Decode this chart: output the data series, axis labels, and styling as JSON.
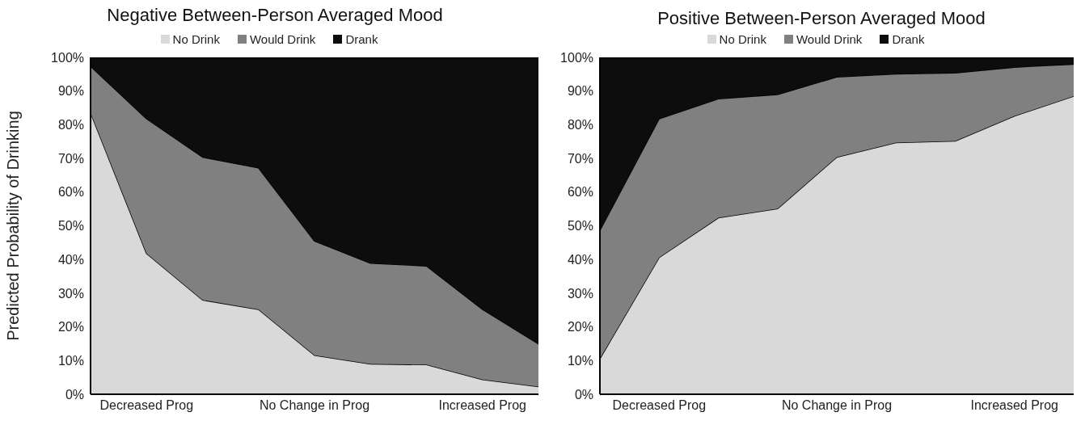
{
  "chart_data": [
    {
      "type": "area",
      "stacked": true,
      "title": "Negative Between-Person Averaged Mood",
      "ylabel": "Predicted Probability of Drinking",
      "legend": "top",
      "grid": false,
      "categories": [
        null,
        "Decreased Prog",
        null,
        null,
        "No Change in Prog",
        null,
        null,
        "Increased Prog",
        null
      ],
      "ylim": [
        0,
        100
      ],
      "yticks": [
        {
          "value": 0,
          "label": "0%"
        },
        {
          "value": 10,
          "label": "10%"
        },
        {
          "value": 20,
          "label": "20%"
        },
        {
          "value": 30,
          "label": "30%"
        },
        {
          "value": 40,
          "label": "40%"
        },
        {
          "value": 50,
          "label": "50%"
        },
        {
          "value": 60,
          "label": "60%"
        },
        {
          "value": 70,
          "label": "70%"
        },
        {
          "value": 80,
          "label": "80%"
        },
        {
          "value": 90,
          "label": "90%"
        },
        {
          "value": 100,
          "label": "100%"
        }
      ],
      "series": [
        {
          "name": "No Drink",
          "color": "#d9d9d9",
          "values": [
            83.6,
            41.8,
            28,
            25.2,
            11.6,
            9,
            8.8,
            4.4,
            2.3
          ]
        },
        {
          "name": "Would Drink",
          "color": "#808080",
          "values": [
            13.8,
            40,
            42.4,
            42,
            33.9,
            29.9,
            29.3,
            20.8,
            12.7
          ]
        },
        {
          "name": "Drank",
          "color": "#0d0d0d",
          "values": [
            2.6,
            18.2,
            29.6,
            32.8,
            54.5,
            61.1,
            61.9,
            74.8,
            85
          ]
        }
      ]
    },
    {
      "type": "area",
      "stacked": true,
      "title": "Positive Between-Person Averaged Mood",
      "legend": "top",
      "grid": false,
      "categories": [
        null,
        "Decreased Prog",
        null,
        null,
        "No Change in Prog",
        null,
        null,
        "Increased Prog",
        null
      ],
      "ylim": [
        0,
        100
      ],
      "yticks": [
        {
          "value": 0,
          "label": "0%"
        },
        {
          "value": 10,
          "label": "10%"
        },
        {
          "value": 20,
          "label": "20%"
        },
        {
          "value": 30,
          "label": "30%"
        },
        {
          "value": 40,
          "label": "40%"
        },
        {
          "value": 50,
          "label": "50%"
        },
        {
          "value": 60,
          "label": "60%"
        },
        {
          "value": 70,
          "label": "70%"
        },
        {
          "value": 80,
          "label": "80%"
        },
        {
          "value": 90,
          "label": "90%"
        },
        {
          "value": 100,
          "label": "100%"
        }
      ],
      "series": [
        {
          "name": "No Drink",
          "color": "#d9d9d9",
          "values": [
            10.6,
            40.6,
            52.4,
            55.1,
            70.4,
            74.7,
            75.2,
            82.6,
            88.5
          ]
        },
        {
          "name": "Would Drink",
          "color": "#808080",
          "values": [
            38.1,
            41.2,
            35.3,
            33.9,
            23.8,
            20.4,
            20.2,
            14.5,
            9.5
          ]
        },
        {
          "name": "Drank",
          "color": "#0d0d0d",
          "values": [
            51.3,
            18.2,
            12.3,
            11,
            5.8,
            4.9,
            4.6,
            2.9,
            2
          ]
        }
      ]
    }
  ]
}
